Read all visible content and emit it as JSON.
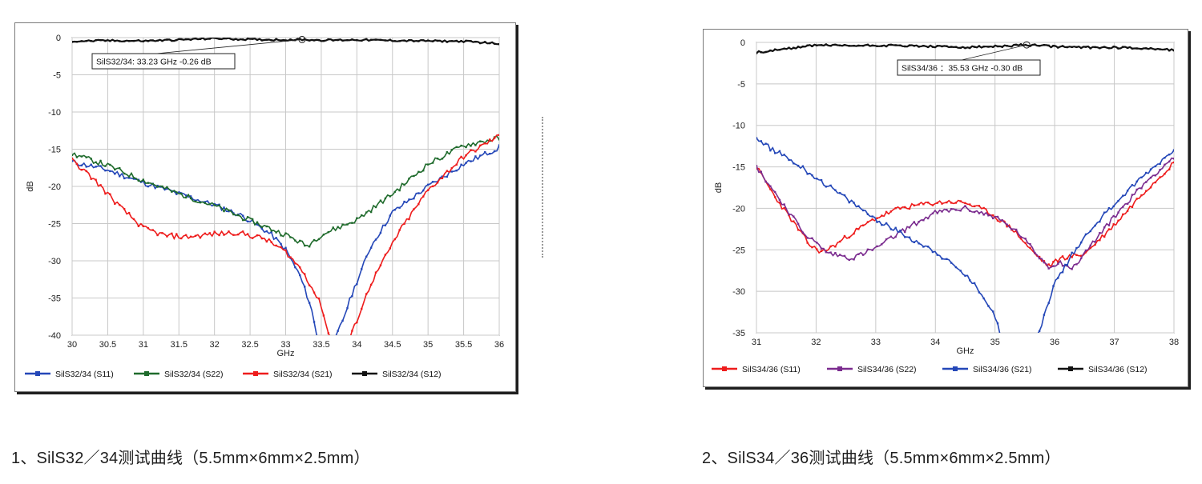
{
  "captions": [
    "1、SilS32／34测试曲线（5.5mm×6mm×2.5mm）",
    "2、SilS34／36测试曲线（5.5mm×6mm×2.5mm）"
  ],
  "colors": {
    "blue": "#2447b8",
    "green": "#1f6b2c",
    "red": "#ee1c1c",
    "black": "#111111",
    "purple": "#7b2c8f",
    "grid": "#c8c8c8"
  },
  "chart_data": [
    {
      "type": "line",
      "xlabel": "GHz",
      "ylabel": "dB",
      "xlim": [
        30,
        36
      ],
      "ylim": [
        -40,
        0
      ],
      "xticks": [
        30,
        30.5,
        31,
        31.5,
        32,
        32.5,
        33,
        33.5,
        34,
        34.5,
        35,
        35.5,
        36
      ],
      "yticks": [
        0,
        -5,
        -10,
        -15,
        -20,
        -25,
        -30,
        -35,
        -40
      ],
      "grid": true,
      "legend_position": "bottom",
      "marker_label": {
        "text": "SilS32/34: 33.23 GHz -0.26 dB",
        "x": 33.23,
        "y": -0.26
      },
      "series": [
        {
          "name": "SilS32/34 (S11)",
          "color": "blue",
          "x": [
            30,
            30.5,
            31,
            31.5,
            32,
            32.4,
            32.8,
            33.0,
            33.2,
            33.35,
            33.45,
            33.7,
            33.8,
            33.95,
            34.2,
            34.5,
            35,
            35.5,
            36
          ],
          "y": [
            -16.7,
            -17.8,
            -19.5,
            -21.0,
            -22.5,
            -24.0,
            -26.5,
            -28.5,
            -32.0,
            -36.0,
            -40.5,
            -40.5,
            -38.0,
            -34.0,
            -28.0,
            -23.5,
            -20.0,
            -17.0,
            -14.8
          ]
        },
        {
          "name": "SilS32/34 (S22)",
          "color": "green",
          "x": [
            30,
            30.5,
            31,
            31.5,
            32,
            32.5,
            33,
            33.3,
            33.5,
            34,
            34.5,
            35,
            35.5,
            36
          ],
          "y": [
            -15.6,
            -17.2,
            -19.2,
            -21.0,
            -22.6,
            -24.6,
            -26.5,
            -28.0,
            -26.5,
            -24.5,
            -21.0,
            -17.0,
            -14.5,
            -13.5
          ]
        },
        {
          "name": "SilS32/34 (S21)",
          "color": "red",
          "x": [
            30,
            30.3,
            30.7,
            31,
            31.3,
            31.6,
            32,
            32.3,
            32.7,
            33,
            33.25,
            33.5,
            33.62,
            33.9,
            34.2,
            34.6,
            35,
            35.5,
            36
          ],
          "y": [
            -16.5,
            -19.0,
            -23.0,
            -25.6,
            -26.6,
            -26.8,
            -26.4,
            -26.2,
            -27.0,
            -28.8,
            -31.5,
            -36.0,
            -40.5,
            -40.5,
            -33.0,
            -26.0,
            -20.5,
            -16.0,
            -13.2
          ]
        },
        {
          "name": "SilS32/34 (S12)",
          "color": "black",
          "x": [
            30,
            30.5,
            31,
            31.5,
            32,
            32.5,
            33,
            33.23,
            33.5,
            34,
            34.5,
            35,
            35.5,
            36
          ],
          "y": [
            -0.5,
            -0.4,
            -0.45,
            -0.3,
            -0.1,
            -0.25,
            -0.3,
            -0.26,
            -0.35,
            -0.3,
            -0.4,
            -0.45,
            -0.5,
            -0.8
          ]
        }
      ]
    },
    {
      "type": "line",
      "xlabel": "GHz",
      "ylabel": "dB",
      "xlim": [
        31,
        38
      ],
      "ylim": [
        -35,
        0
      ],
      "xticks": [
        31,
        32,
        33,
        34,
        35,
        36,
        37,
        38
      ],
      "yticks": [
        0,
        -5,
        -10,
        -15,
        -20,
        -25,
        -30,
        -35
      ],
      "grid": true,
      "legend_position": "bottom",
      "marker_label": {
        "text": "SilS34/36 ：35.53 GHz -0.30 dB",
        "x": 35.53,
        "y": -0.3
      },
      "series": [
        {
          "name": "SilS34/36 (S11)",
          "color": "red",
          "x": [
            31,
            31.3,
            31.6,
            31.9,
            32.1,
            32.3,
            32.6,
            33,
            33.4,
            33.8,
            34.2,
            34.5,
            34.9,
            35.3,
            35.6,
            35.9,
            36.1,
            36.5,
            37,
            37.5,
            38
          ],
          "y": [
            -15.0,
            -18.5,
            -21.5,
            -24.5,
            -25.3,
            -24.5,
            -23.0,
            -21.2,
            -20.0,
            -19.5,
            -19.2,
            -19.3,
            -20.5,
            -22.5,
            -25.0,
            -27.0,
            -26.0,
            -25.5,
            -22.0,
            -18.0,
            -14.5
          ]
        },
        {
          "name": "SilS34/36 (S22)",
          "color": "purple",
          "x": [
            31,
            31.4,
            31.8,
            32.2,
            32.6,
            33,
            33.5,
            34,
            34.5,
            35,
            35.4,
            35.7,
            35.9,
            36.1,
            36.3,
            36.6,
            37,
            37.5,
            38
          ],
          "y": [
            -15.0,
            -19.0,
            -23.0,
            -25.4,
            -26.0,
            -24.8,
            -22.5,
            -20.5,
            -20.0,
            -21.0,
            -23.0,
            -25.5,
            -27.0,
            -26.5,
            -27.3,
            -24.5,
            -21.0,
            -17.0,
            -13.8
          ]
        },
        {
          "name": "SilS34/36 (S21)",
          "color": "blue",
          "x": [
            31,
            31.5,
            32,
            32.5,
            33,
            33.5,
            34,
            34.5,
            34.8,
            35,
            35.1,
            35.7,
            35.8,
            36,
            36.3,
            36.6,
            37,
            37.5,
            38
          ],
          "y": [
            -11.8,
            -13.8,
            -16.3,
            -18.8,
            -21.3,
            -23.3,
            -25.2,
            -28.0,
            -30.5,
            -33.0,
            -35.5,
            -35.5,
            -33.5,
            -29.0,
            -25.5,
            -22.5,
            -19.5,
            -16.0,
            -13.0
          ]
        },
        {
          "name": "SilS34/36 (S12)",
          "color": "black",
          "x": [
            31,
            31.5,
            32,
            32.5,
            33,
            33.5,
            34,
            34.5,
            35,
            35.53,
            36,
            36.5,
            37,
            37.5,
            38
          ],
          "y": [
            -1.2,
            -0.8,
            -0.3,
            -0.4,
            -0.35,
            -0.4,
            -0.5,
            -0.6,
            -0.5,
            -0.3,
            -0.5,
            -0.6,
            -0.6,
            -0.7,
            -0.9
          ]
        }
      ]
    }
  ]
}
